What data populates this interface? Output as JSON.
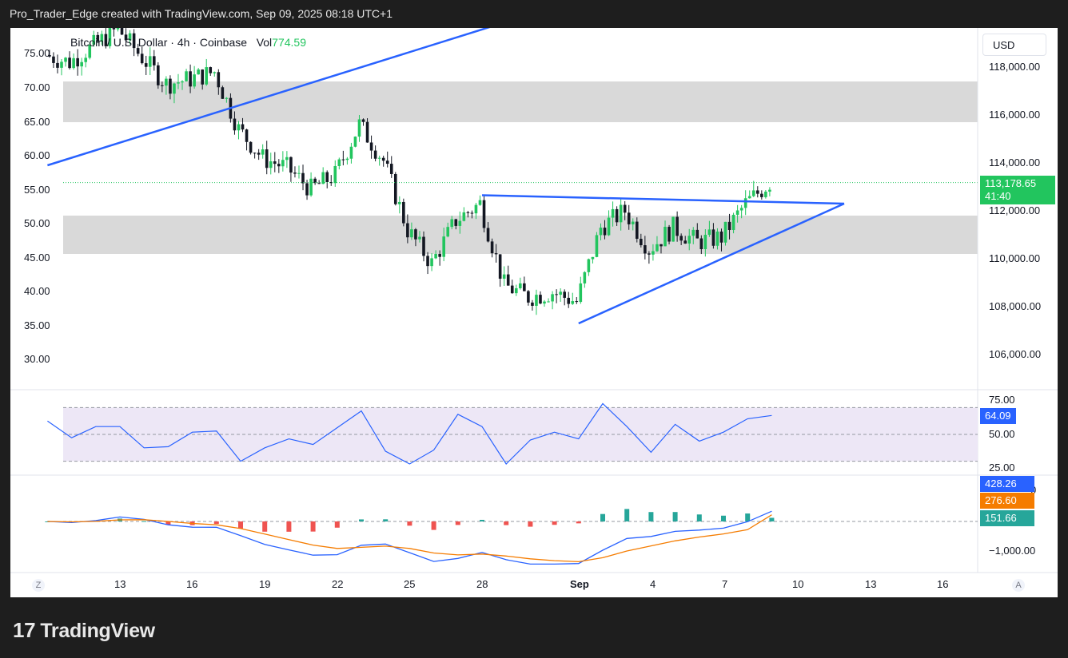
{
  "header": {
    "text": "Pro_Trader_Edge created with TradingView.com, Sep 09, 2025 08:18 UTC+1"
  },
  "footer": {
    "logo_mark": "17",
    "logo_text": "TradingView"
  },
  "legend": {
    "symbol": "Bitcoin / U.S. Dollar",
    "interval": "4h",
    "exchange": "Coinbase",
    "vol_label": "Vol",
    "vol_value": "774.59"
  },
  "price_axis": {
    "unit": "USD",
    "ticks": [
      "118,000.00",
      "116,000.00",
      "114,000.00",
      "112,000.00",
      "110,000.00",
      "108,000.00",
      "106,000.00"
    ],
    "current_price": "113,178.65",
    "countdown": "41:40"
  },
  "left_axis": {
    "ticks": [
      "75.00",
      "70.00",
      "65.00",
      "60.00",
      "55.00",
      "50.00",
      "45.00",
      "40.00",
      "35.00",
      "30.00"
    ]
  },
  "rsi": {
    "ticks": [
      "75.00",
      "50.00",
      "25.00"
    ],
    "value": "64.09"
  },
  "macd": {
    "tick_upper": "0",
    "tick_lower": "−1,000.00",
    "macd_value": "428.26",
    "signal_value": "276.60",
    "hist_value": "151.66"
  },
  "time_axis": {
    "labels": [
      "13",
      "16",
      "19",
      "22",
      "25",
      "28",
      "Sep",
      "4",
      "7",
      "10",
      "13",
      "16"
    ],
    "left_button": "Z",
    "right_button": "A"
  },
  "colors": {
    "up": "#22c55e",
    "down": "#131722",
    "trend": "#2962ff",
    "zone": "#d9d9d9",
    "macd": "#2962ff",
    "signal": "#f57c00",
    "hist_up": "#26a69a",
    "hist_down": "#ef5350",
    "rsi": "#2962ff"
  },
  "chart_data": {
    "type": "candlestick",
    "interval": "4h",
    "y_unit": "USD",
    "close_series": [
      {
        "date": "2025-08-10",
        "close": 118500
      },
      {
        "date": "2025-08-11",
        "close": 118200
      },
      {
        "date": "2025-08-12",
        "close": 118900
      },
      {
        "date": "2025-08-13",
        "close": 119600
      },
      {
        "date": "2025-08-14",
        "close": 118400
      },
      {
        "date": "2025-08-15",
        "close": 117300
      },
      {
        "date": "2025-08-16",
        "close": 117500
      },
      {
        "date": "2025-08-17",
        "close": 117800
      },
      {
        "date": "2025-08-18",
        "close": 115400
      },
      {
        "date": "2025-08-19",
        "close": 114200
      },
      {
        "date": "2025-08-20",
        "close": 113800
      },
      {
        "date": "2025-08-21",
        "close": 112900
      },
      {
        "date": "2025-08-22",
        "close": 113500
      },
      {
        "date": "2025-08-23",
        "close": 115600
      },
      {
        "date": "2025-08-24",
        "close": 114100
      },
      {
        "date": "2025-08-25",
        "close": 111200
      },
      {
        "date": "2025-08-26",
        "close": 109800
      },
      {
        "date": "2025-08-27",
        "close": 111600
      },
      {
        "date": "2025-08-28",
        "close": 112300
      },
      {
        "date": "2025-08-29",
        "close": 108900
      },
      {
        "date": "2025-08-30",
        "close": 108400
      },
      {
        "date": "2025-08-31",
        "close": 108600
      },
      {
        "date": "2025-09-01",
        "close": 108200
      },
      {
        "date": "2025-09-02",
        "close": 111300
      },
      {
        "date": "2025-09-03",
        "close": 112000
      },
      {
        "date": "2025-09-04",
        "close": 110400
      },
      {
        "date": "2025-09-05",
        "close": 111300
      },
      {
        "date": "2025-09-06",
        "close": 110700
      },
      {
        "date": "2025-09-07",
        "close": 110900
      },
      {
        "date": "2025-09-08",
        "close": 112300
      },
      {
        "date": "2025-09-09",
        "close": 113178.65
      }
    ],
    "zones": [
      {
        "from": 115700,
        "to": 117400
      },
      {
        "from": 110200,
        "to": 111800
      }
    ],
    "trendlines": [
      {
        "from": {
          "date": "2025-08-10",
          "price": 113900
        },
        "to": {
          "date": "2025-08-30",
          "price": 120200
        }
      },
      {
        "from": {
          "date": "2025-08-28",
          "price": 112650
        },
        "to": {
          "date": "2025-09-12",
          "price": 112300
        }
      },
      {
        "from": {
          "date": "2025-09-01",
          "price": 107300
        },
        "to": {
          "date": "2025-09-12",
          "price": 112300
        }
      }
    ],
    "rsi_ylim": [
      25,
      75
    ],
    "rsi_levels": [
      70,
      50,
      30
    ],
    "rsi_last": 64.09,
    "macd_last": 428.26,
    "signal_last": 276.6,
    "hist_last": 151.66
  }
}
